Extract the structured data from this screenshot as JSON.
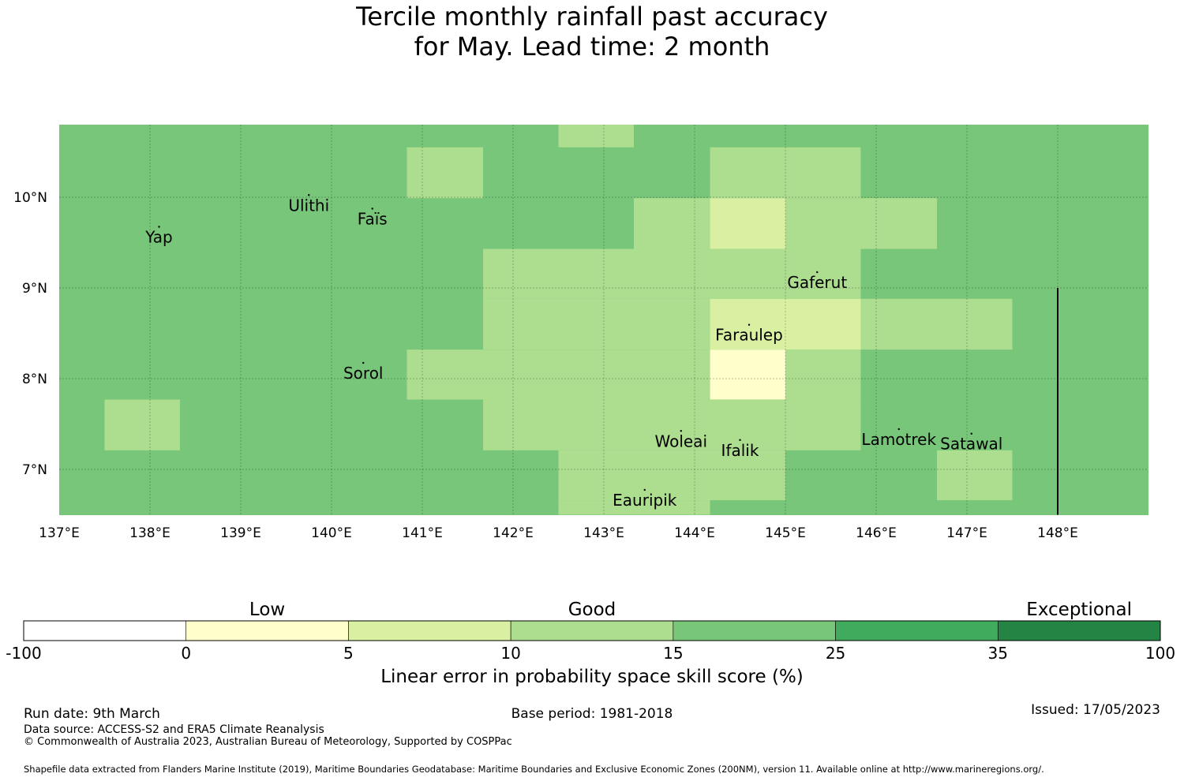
{
  "title": {
    "line1": "Tercile monthly rainfall past accuracy",
    "line2": "for May. Lead time: 2 month"
  },
  "map": {
    "lon_range": [
      137,
      149
    ],
    "lat_range": [
      6.5,
      10.8
    ],
    "lon_ticks": [
      {
        "value": 137,
        "label": "137°E"
      },
      {
        "value": 138,
        "label": "138°E"
      },
      {
        "value": 139,
        "label": "139°E"
      },
      {
        "value": 140,
        "label": "140°E"
      },
      {
        "value": 141,
        "label": "141°E"
      },
      {
        "value": 142,
        "label": "142°E"
      },
      {
        "value": 143,
        "label": "143°E"
      },
      {
        "value": 144,
        "label": "144°E"
      },
      {
        "value": 145,
        "label": "145°E"
      },
      {
        "value": 146,
        "label": "146°E"
      },
      {
        "value": 147,
        "label": "147°E"
      },
      {
        "value": 148,
        "label": "148°E"
      }
    ],
    "lat_ticks": [
      {
        "value": 7,
        "label": "7°N"
      },
      {
        "value": 8,
        "label": "8°N"
      },
      {
        "value": 9,
        "label": "9°N"
      },
      {
        "value": 10,
        "label": "10°N"
      }
    ],
    "background_color": "#78c679",
    "cells": [
      {
        "lon": [
          142.5,
          143.33
        ],
        "lat": [
          10.55,
          10.8
        ],
        "color": "#addd8e"
      },
      {
        "lon": [
          140.83,
          141.67
        ],
        "lat": [
          9.99,
          10.55
        ],
        "color": "#addd8e"
      },
      {
        "lon": [
          144.17,
          145.83
        ],
        "lat": [
          9.99,
          10.55
        ],
        "color": "#addd8e"
      },
      {
        "lon": [
          143.33,
          144.17
        ],
        "lat": [
          9.43,
          9.99
        ],
        "color": "#addd8e"
      },
      {
        "lon": [
          144.17,
          145.0
        ],
        "lat": [
          9.43,
          9.99
        ],
        "color": "#d9f0a3"
      },
      {
        "lon": [
          145.0,
          146.67
        ],
        "lat": [
          9.43,
          9.99
        ],
        "color": "#addd8e"
      },
      {
        "lon": [
          141.67,
          145.83
        ],
        "lat": [
          8.88,
          9.43
        ],
        "color": "#addd8e"
      },
      {
        "lon": [
          141.67,
          144.17
        ],
        "lat": [
          8.32,
          8.88
        ],
        "color": "#addd8e"
      },
      {
        "lon": [
          144.17,
          145.83
        ],
        "lat": [
          8.32,
          8.88
        ],
        "color": "#d9f0a3"
      },
      {
        "lon": [
          145.83,
          147.5
        ],
        "lat": [
          8.32,
          8.88
        ],
        "color": "#addd8e"
      },
      {
        "lon": [
          140.83,
          144.17
        ],
        "lat": [
          7.77,
          8.32
        ],
        "color": "#addd8e"
      },
      {
        "lon": [
          144.17,
          145.0
        ],
        "lat": [
          7.77,
          8.32
        ],
        "color": "#ffffcc"
      },
      {
        "lon": [
          145.0,
          145.83
        ],
        "lat": [
          7.77,
          8.32
        ],
        "color": "#addd8e"
      },
      {
        "lon": [
          137.5,
          138.33
        ],
        "lat": [
          7.21,
          7.77
        ],
        "color": "#addd8e"
      },
      {
        "lon": [
          141.67,
          145.83
        ],
        "lat": [
          7.21,
          7.77
        ],
        "color": "#addd8e"
      },
      {
        "lon": [
          142.5,
          145.0
        ],
        "lat": [
          6.66,
          7.21
        ],
        "color": "#addd8e"
      },
      {
        "lon": [
          146.67,
          147.5
        ],
        "lat": [
          6.66,
          7.21
        ],
        "color": "#addd8e"
      },
      {
        "lon": [
          142.5,
          144.17
        ],
        "lat": [
          6.5,
          6.66
        ],
        "color": "#addd8e"
      }
    ],
    "boundary_line": {
      "lon": 148.0,
      "lat": [
        6.5,
        9.0
      ]
    },
    "places": [
      {
        "name": "Yap",
        "lon": 138.1,
        "lat": 9.5
      },
      {
        "name": "Ulithi",
        "lon": 139.75,
        "lat": 9.85
      },
      {
        "name": "Faïs",
        "lon": 140.45,
        "lat": 9.7
      },
      {
        "name": "Gaferut",
        "lon": 145.35,
        "lat": 9.0
      },
      {
        "name": "Faraulep",
        "lon": 144.6,
        "lat": 8.42
      },
      {
        "name": "Sorol",
        "lon": 140.35,
        "lat": 8.0
      },
      {
        "name": "Woleai",
        "lon": 143.85,
        "lat": 7.25
      },
      {
        "name": "Ifalik",
        "lon": 144.5,
        "lat": 7.15
      },
      {
        "name": "Lamotrek",
        "lon": 146.25,
        "lat": 7.27
      },
      {
        "name": "Satawal",
        "lon": 147.05,
        "lat": 7.22
      },
      {
        "name": "Eauripik",
        "lon": 143.45,
        "lat": 6.6
      }
    ]
  },
  "colorbar": {
    "categories": [
      {
        "label": "Low",
        "between": [
          0,
          5
        ]
      },
      {
        "label": "Good",
        "between": [
          10,
          15
        ]
      },
      {
        "label": "Exceptional",
        "between": [
          35,
          100
        ]
      }
    ],
    "ticks": [
      "-100",
      "0",
      "5",
      "10",
      "15",
      "25",
      "35",
      "100"
    ],
    "colors": [
      "#ffffff",
      "#ffffcc",
      "#d9f0a3",
      "#addd8e",
      "#78c679",
      "#41ab5d",
      "#238443"
    ],
    "label": "Linear error in probability space skill score (%)"
  },
  "footer": {
    "run_date": "Run date: 9th March",
    "base_period": "Base period: 1981-2018",
    "issued": "Issued: 17/05/2023",
    "data_source": "Data source: ACCESS-S2 and ERA5 Climate Reanalysis",
    "copyright": "© Commonwealth of Australia 2023, Australian Bureau of Meteorology, Supported by COSPPac",
    "shapefile": "Shapefile data extracted from Flanders Marine Institute (2019), Maritime Boundaries Geodatabase: Maritime Boundaries and Exclusive Economic Zones (200NM), version 11. Available online at http://www.marineregions.org/."
  }
}
